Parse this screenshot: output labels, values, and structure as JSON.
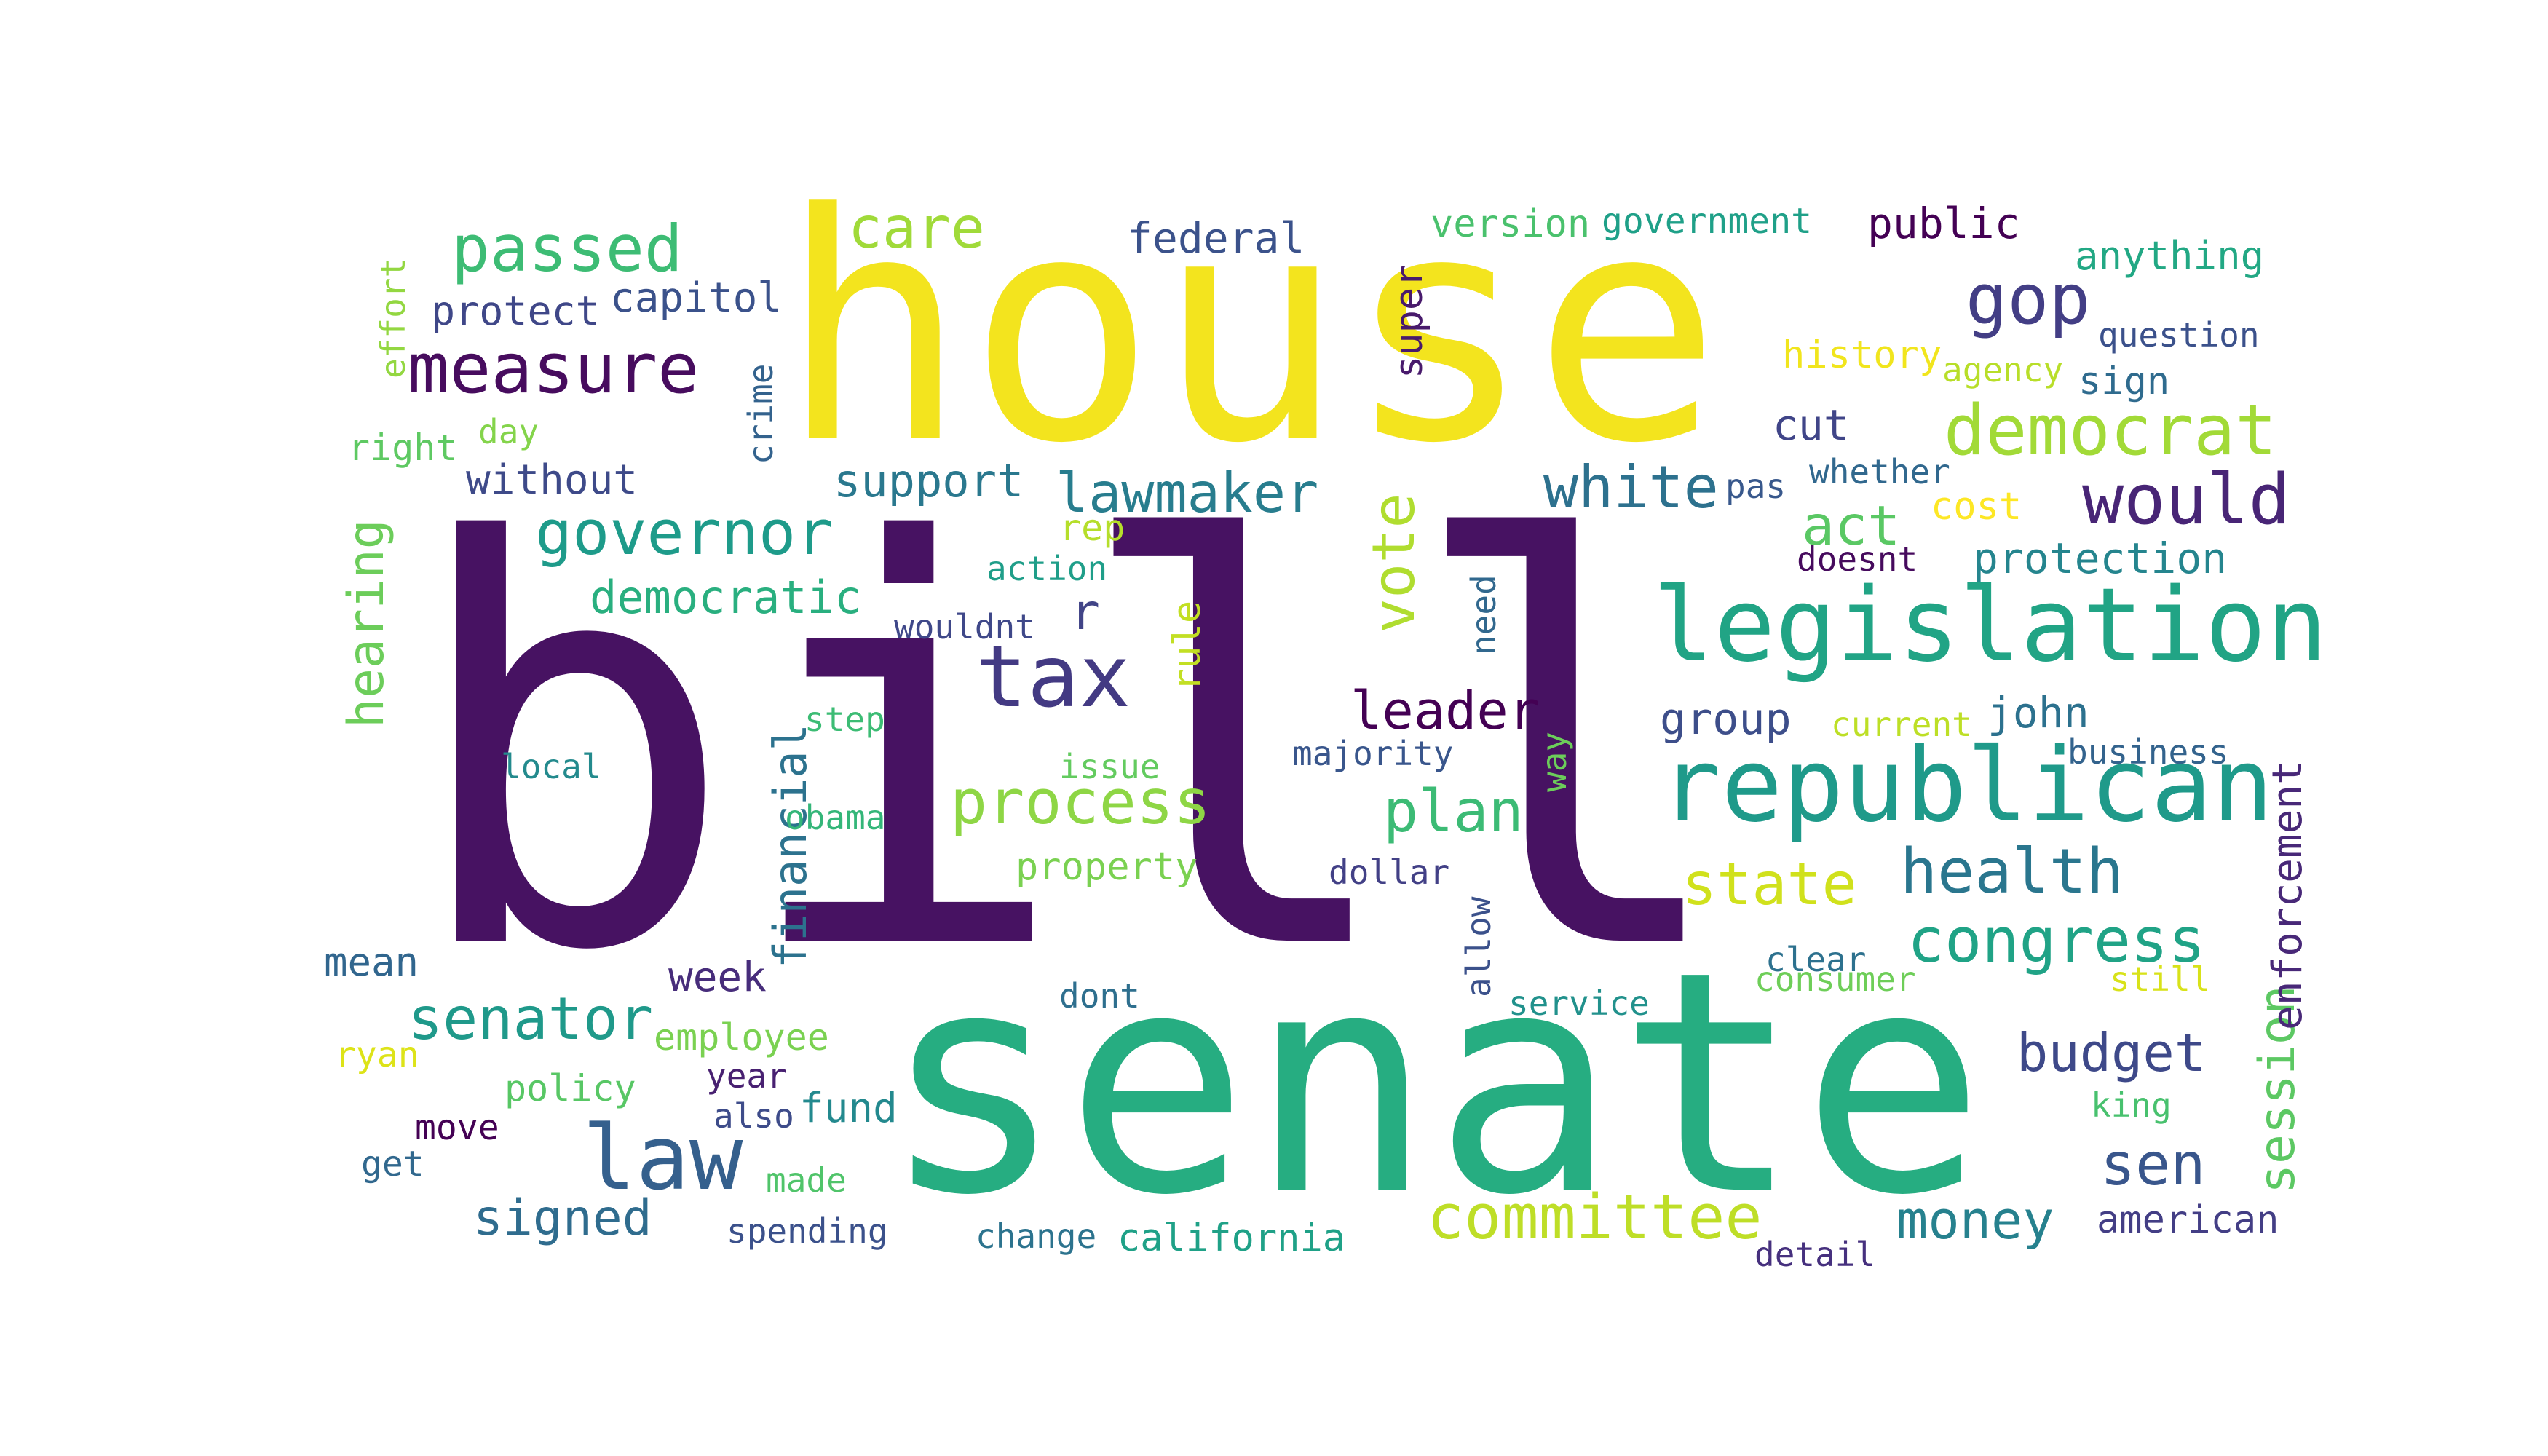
{
  "words": [
    {
      "text": "house",
      "color": "#f3e41e",
      "rotated": false
    },
    {
      "text": "bill",
      "color": "#471262",
      "rotated": false
    },
    {
      "text": "senate",
      "color": "#26ad81",
      "rotated": false
    },
    {
      "text": "legislation",
      "color": "#21a485",
      "rotated": false
    },
    {
      "text": "republican",
      "color": "#1f9a8a",
      "rotated": false
    },
    {
      "text": "tax",
      "color": "#433a83",
      "rotated": false
    },
    {
      "text": "law",
      "color": "#35608d",
      "rotated": false
    },
    {
      "text": "committee",
      "color": "#bede27",
      "rotated": false
    },
    {
      "text": "measure",
      "color": "#470c5e",
      "rotated": false
    },
    {
      "text": "passed",
      "color": "#3dbc74",
      "rotated": false
    },
    {
      "text": "gop",
      "color": "#433e85",
      "rotated": false
    },
    {
      "text": "democrat",
      "color": "#a2da37",
      "rotated": false
    },
    {
      "text": "would",
      "color": "#482576",
      "rotated": false
    },
    {
      "text": "process",
      "color": "#8ed645",
      "rotated": false
    },
    {
      "text": "governor",
      "color": "#1e9b8a",
      "rotated": false
    },
    {
      "text": "senator",
      "color": "#1f998a",
      "rotated": false
    },
    {
      "text": "health",
      "color": "#2a768e",
      "rotated": false
    },
    {
      "text": "congress",
      "color": "#20a386",
      "rotated": false
    },
    {
      "text": "state",
      "color": "#d0e11c",
      "rotated": false
    },
    {
      "text": "white",
      "color": "#2d718e",
      "rotated": false
    },
    {
      "text": "lawmaker",
      "color": "#287d8e",
      "rotated": false
    },
    {
      "text": "plan",
      "color": "#3cbb75",
      "rotated": false
    },
    {
      "text": "leader",
      "color": "#440154",
      "rotated": false
    },
    {
      "text": "act",
      "color": "#5ac864",
      "rotated": false
    },
    {
      "text": "care",
      "color": "#a0da39",
      "rotated": false
    },
    {
      "text": "vote",
      "color": "#b0dd2f",
      "rotated": true
    },
    {
      "text": "money",
      "color": "#26818e",
      "rotated": false
    },
    {
      "text": "budget",
      "color": "#3e4989",
      "rotated": false
    },
    {
      "text": "sen",
      "color": "#39568c",
      "rotated": false
    },
    {
      "text": "signed",
      "color": "#2f6c8e",
      "rotated": false
    },
    {
      "text": "session",
      "color": "#5cc863",
      "rotated": true
    },
    {
      "text": "support",
      "color": "#2a788e",
      "rotated": false
    },
    {
      "text": "hearing",
      "color": "#6ccd5a",
      "rotated": true
    },
    {
      "text": "democratic",
      "color": "#29af7f",
      "rotated": false
    },
    {
      "text": "financial",
      "color": "#2c728e",
      "rotated": true
    },
    {
      "text": "enforcement",
      "color": "#482878",
      "rotated": true
    },
    {
      "text": "federal",
      "color": "#3b528b",
      "rotated": false
    },
    {
      "text": "public",
      "color": "#440154",
      "rotated": false
    },
    {
      "text": "protect",
      "color": "#3f4788",
      "rotated": false
    },
    {
      "text": "capitol",
      "color": "#3b528b",
      "rotated": false
    },
    {
      "text": "protection",
      "color": "#25858e",
      "rotated": false
    },
    {
      "text": "r",
      "color": "#414487",
      "rotated": false
    },
    {
      "text": "john",
      "color": "#2c718e",
      "rotated": false
    },
    {
      "text": "group",
      "color": "#3d4e8a",
      "rotated": false
    },
    {
      "text": "without",
      "color": "#3e4a89",
      "rotated": false
    },
    {
      "text": "california",
      "color": "#1fa187",
      "rotated": false
    },
    {
      "text": "american",
      "color": "#433e85",
      "rotated": false
    },
    {
      "text": "anything",
      "color": "#22a884",
      "rotated": false
    },
    {
      "text": "cut",
      "color": "#404588",
      "rotated": false
    },
    {
      "text": "version",
      "color": "#4ac16d",
      "rotated": false
    },
    {
      "text": "government",
      "color": "#1fa088",
      "rotated": false
    },
    {
      "text": "week",
      "color": "#472d7b",
      "rotated": false
    },
    {
      "text": "employee",
      "color": "#7ad151",
      "rotated": false
    },
    {
      "text": "property",
      "color": "#7ad151",
      "rotated": false
    },
    {
      "text": "super",
      "color": "#481a6c",
      "rotated": true
    },
    {
      "text": "mean",
      "color": "#31668e",
      "rotated": false
    },
    {
      "text": "rule",
      "color": "#c2df23",
      "rotated": true
    },
    {
      "text": "policy",
      "color": "#58c765",
      "rotated": false
    },
    {
      "text": "fund",
      "color": "#23898e",
      "rotated": false
    },
    {
      "text": "rep",
      "color": "#b5de2b",
      "rotated": false
    },
    {
      "text": "crime",
      "color": "#33628d",
      "rotated": true
    },
    {
      "text": "right",
      "color": "#5ec962",
      "rotated": false
    },
    {
      "text": "history",
      "color": "#f1e51d",
      "rotated": false
    },
    {
      "text": "sign",
      "color": "#2f6b8e",
      "rotated": false
    },
    {
      "text": "majority",
      "color": "#39568c",
      "rotated": false
    },
    {
      "text": "allow",
      "color": "#3b518b",
      "rotated": true
    },
    {
      "text": "service",
      "color": "#21918c",
      "rotated": false
    },
    {
      "text": "question",
      "color": "#3b518b",
      "rotated": false
    },
    {
      "text": "whether",
      "color": "#31688e",
      "rotated": false
    },
    {
      "text": "pas",
      "color": "#38588c",
      "rotated": false
    },
    {
      "text": "cost",
      "color": "#fde725",
      "rotated": false
    },
    {
      "text": "agency",
      "color": "#b8de29",
      "rotated": false
    },
    {
      "text": "effort",
      "color": "#93d741",
      "rotated": true
    },
    {
      "text": "move",
      "color": "#440154",
      "rotated": false
    },
    {
      "text": "get",
      "color": "#31688e",
      "rotated": false
    },
    {
      "text": "year",
      "color": "#482071",
      "rotated": false
    },
    {
      "text": "also",
      "color": "#3e4c8a",
      "rotated": false
    },
    {
      "text": "spending",
      "color": "#3b518b",
      "rotated": false
    },
    {
      "text": "change",
      "color": "#2c738e",
      "rotated": false
    },
    {
      "text": "detail",
      "color": "#46307e",
      "rotated": false
    },
    {
      "text": "king",
      "color": "#48c16e",
      "rotated": false
    },
    {
      "text": "still",
      "color": "#d8e219",
      "rotated": false
    },
    {
      "text": "consumer",
      "color": "#6ece58",
      "rotated": false
    },
    {
      "text": "clear",
      "color": "#2d718e",
      "rotated": false
    },
    {
      "text": "dont",
      "color": "#2e6f8e",
      "rotated": false
    },
    {
      "text": "ryan",
      "color": "#dde318",
      "rotated": false
    },
    {
      "text": "made",
      "color": "#50c46a",
      "rotated": false
    },
    {
      "text": "step",
      "color": "#3cbc74",
      "rotated": false
    },
    {
      "text": "local",
      "color": "#238a8d",
      "rotated": false
    },
    {
      "text": "issue",
      "color": "#63cb5f",
      "rotated": false
    },
    {
      "text": "obama",
      "color": "#34b679",
      "rotated": false
    },
    {
      "text": "dollar",
      "color": "#424086",
      "rotated": false
    },
    {
      "text": "wouldnt",
      "color": "#3f4889",
      "rotated": false
    },
    {
      "text": "action",
      "color": "#1f9e89",
      "rotated": false
    },
    {
      "text": "need",
      "color": "#31688e",
      "rotated": true
    },
    {
      "text": "way",
      "color": "#6ccd5a",
      "rotated": true
    },
    {
      "text": "current",
      "color": "#bddf26",
      "rotated": false
    },
    {
      "text": "business",
      "color": "#33638d",
      "rotated": false
    },
    {
      "text": "doesnt",
      "color": "#460a5d",
      "rotated": false
    },
    {
      "text": "day",
      "color": "#84d44b",
      "rotated": false
    }
  ]
}
